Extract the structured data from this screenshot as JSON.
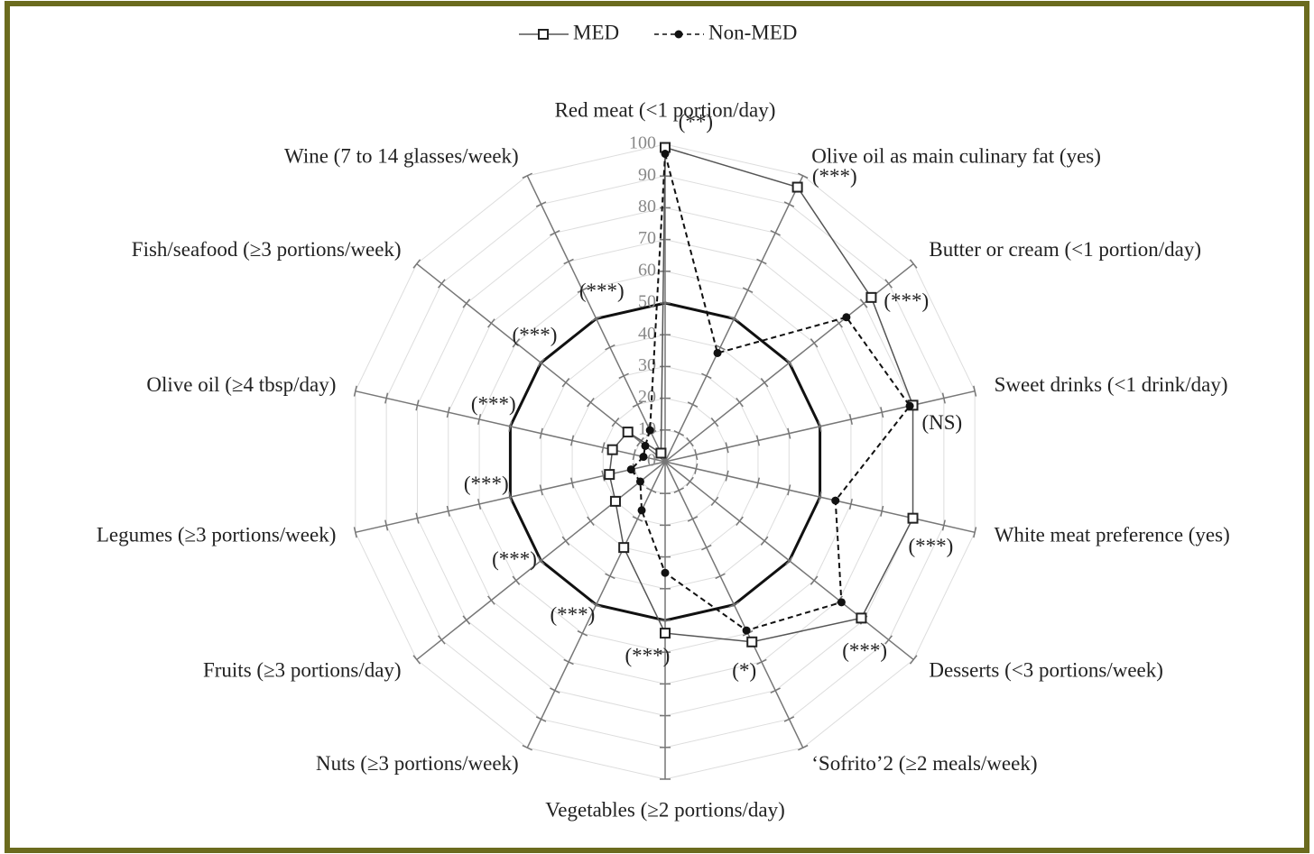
{
  "chart_data": {
    "type": "radar",
    "categories": [
      "Red meat (<1 portion/day)",
      "Olive oil as main culinary fat (yes)",
      "Butter or cream (<1 portion/day)",
      "Sweet drinks (<1 drink/day)",
      "White meat preference (yes)",
      "Desserts (<3 portions/week)",
      "‘Sofrito’2 (≥2 meals/week)",
      "Vegetables (≥2 portions/day)",
      "Nuts (≥3 portions/week)",
      "Fruits (≥3 portions/day)",
      "Legumes (≥3 portions/week)",
      "Olive oil (≥4 tbsp/day)",
      "Fish/seafood (≥3 portions/week)",
      "Wine (7 to 14 glasses/week)"
    ],
    "series": [
      {
        "name": "MED",
        "color": "#555555",
        "values": [
          99,
          96,
          83,
          80,
          80,
          79,
          63,
          54,
          30,
          20,
          18,
          17,
          15,
          3
        ]
      },
      {
        "name": "Non-MED",
        "color": "#111111",
        "values": [
          97,
          38,
          73,
          79,
          55,
          71,
          59,
          35,
          17,
          10,
          11,
          7,
          8,
          11
        ]
      }
    ],
    "annotations": [
      "(**)",
      "(***)",
      "(***)",
      "(NS)",
      "(***)",
      "(***)",
      "(*)",
      "(***)",
      "(***)",
      "(***)",
      "(***)",
      "(***)",
      "(***)",
      "(***)"
    ],
    "highlight_ring": 50,
    "ylim": [
      0,
      100
    ],
    "yticks": [
      0,
      10,
      20,
      30,
      40,
      50,
      60,
      70,
      80,
      90,
      100
    ],
    "grid": true,
    "legend": "top"
  }
}
